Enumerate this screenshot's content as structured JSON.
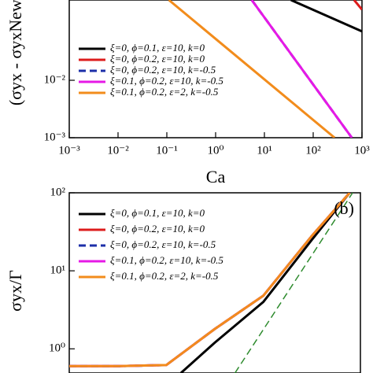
{
  "chart_data": [
    {
      "type": "line",
      "log_x": true,
      "log_y": true,
      "y_label": "(σyx - σyxNewt)",
      "x_label": "Ca",
      "xlim": [
        0.001,
        1000
      ],
      "xticks": [
        {
          "value": 0.001,
          "label": "10⁻³"
        },
        {
          "value": 0.01,
          "label": "10⁻²"
        },
        {
          "value": 0.1,
          "label": "10⁻¹"
        },
        {
          "value": 1,
          "label": "10⁰"
        },
        {
          "value": 10,
          "label": "10¹"
        },
        {
          "value": 100,
          "label": "10²"
        },
        {
          "value": 1000,
          "label": "10³"
        }
      ],
      "ylim": [
        0.001,
        0.25
      ],
      "yticks": [
        {
          "value": 0.001,
          "label": "10⁻³"
        },
        {
          "value": 0.01,
          "label": "10⁻²"
        }
      ],
      "series": [
        {
          "name": "ξ=0, ϕ=0.1, ε=10, k=0",
          "color": "#000000",
          "x": [
            35,
            1000
          ],
          "values": [
            0.25,
            0.071
          ]
        },
        {
          "name": "ξ=0, ϕ=0.2, ε=10, k=0",
          "color": "#dd1c1c",
          "x": [
            690,
            1000
          ],
          "values": [
            0.25,
            0.17
          ]
        },
        {
          "name": "ξ=0, ϕ=0.2, ε=10, k=-0.5",
          "color": "#1c2fa8",
          "dashed": true,
          "x": [
            5.5,
            620
          ],
          "values": [
            0.25,
            0.001
          ]
        },
        {
          "name": "ξ=0.1, ϕ=0.2, ε=10, k=-0.5",
          "color": "#e619e6",
          "x": [
            5.5,
            620
          ],
          "values": [
            0.25,
            0.001
          ]
        },
        {
          "name": "ξ=0.1, ϕ=0.2, ε=2, k=-0.5",
          "color": "#f28c1c",
          "x": [
            0.11,
            275
          ],
          "values": [
            0.25,
            0.001
          ]
        }
      ]
    },
    {
      "type": "line",
      "log_x": true,
      "log_y": true,
      "y_label": "σyx/Γ",
      "annotation": "(b)",
      "xlim": [
        0.001,
        1000
      ],
      "ylim": [
        0.49,
        100
      ],
      "yticks": [
        {
          "value": 1,
          "label": "10⁰"
        },
        {
          "value": 10,
          "label": "10¹"
        },
        {
          "value": 100,
          "label": "10²"
        }
      ],
      "series": [
        {
          "name": "ξ=0, ϕ=0.1, ε=10, k=0",
          "color": "#000000",
          "x": [
            0.2,
            1,
            10,
            100,
            600
          ],
          "values": [
            0.49,
            1.2,
            4,
            25,
            100
          ]
        },
        {
          "name": "ξ=0, ϕ=0.2, ε=10, k=0",
          "color": "#dd1c1c",
          "x": [
            0.001,
            0.01,
            0.1,
            1,
            10,
            100,
            600
          ],
          "values": [
            0.6,
            0.6,
            0.62,
            1.8,
            4.8,
            28,
            100
          ]
        },
        {
          "name": "ξ=0, ϕ=0.2, ε=10, k=-0.5",
          "color": "#1c2fa8",
          "dashed": true,
          "x": [
            0.001,
            0.01,
            0.1,
            1,
            10,
            100,
            600
          ],
          "values": [
            0.6,
            0.6,
            0.62,
            1.8,
            4.8,
            28,
            100
          ]
        },
        {
          "name": "ξ=0.1, ϕ=0.2, ε=10, k=-0.5",
          "color": "#e619e6",
          "x": [
            0.001,
            0.01,
            0.1,
            1,
            10,
            100,
            600
          ],
          "values": [
            0.6,
            0.6,
            0.62,
            1.8,
            4.8,
            28,
            100
          ]
        },
        {
          "name": "ξ=0.1, ϕ=0.2, ε=2, k=-0.5",
          "color": "#f28c1c",
          "x": [
            0.001,
            0.01,
            0.1,
            1,
            10,
            100,
            600
          ],
          "values": [
            0.6,
            0.6,
            0.62,
            1.8,
            4.8,
            28,
            100
          ]
        },
        {
          "color": "#2e8b2e",
          "dashed": true,
          "x": [
            2.6,
            690
          ],
          "values": [
            0.49,
            100
          ]
        }
      ]
    }
  ]
}
